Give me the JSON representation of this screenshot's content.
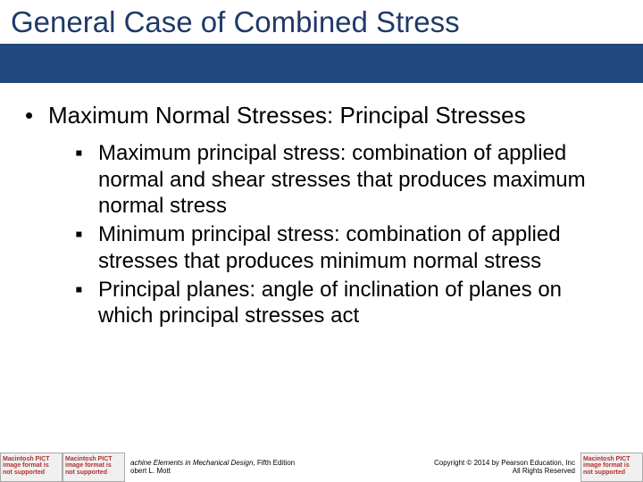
{
  "colors": {
    "title_text": "#1f3a68",
    "title_bar_bg": "#1f497d",
    "body_text": "#000000",
    "pict_box_bg": "#f0f0f0",
    "pict_box_border": "#aaaaaa",
    "pict_box_text": "#b03030",
    "page_bg": "#ffffff"
  },
  "typography": {
    "title_fontsize": 33,
    "lvl1_fontsize": 26,
    "lvl2_fontsize": 24,
    "footer_fontsize": 8,
    "font_family": "Verdana"
  },
  "title": "General Case of Combined Stress",
  "lvl1_bullet": "•",
  "lvl2_bullet": "▪",
  "bullets": {
    "main": "Maximum Normal Stresses: Principal Stresses",
    "subs": [
      "Maximum principal stress: combination of applied normal and shear stresses that produces maximum normal stress",
      "Minimum principal stress: combination of applied stresses that produces minimum normal stress",
      "Principal planes: angle of inclination of planes on which principal stresses act"
    ]
  },
  "footer": {
    "pict_text": "Macintosh PICT image format is not supported",
    "book_title": "achine Elements in Mechanical Design",
    "edition": ", Fifth Edition",
    "author": "obert L. Mott",
    "copyright_line1": "Copyright © 2014 by Pearson Education, Inc",
    "copyright_line2": "All Rights Reserved"
  }
}
